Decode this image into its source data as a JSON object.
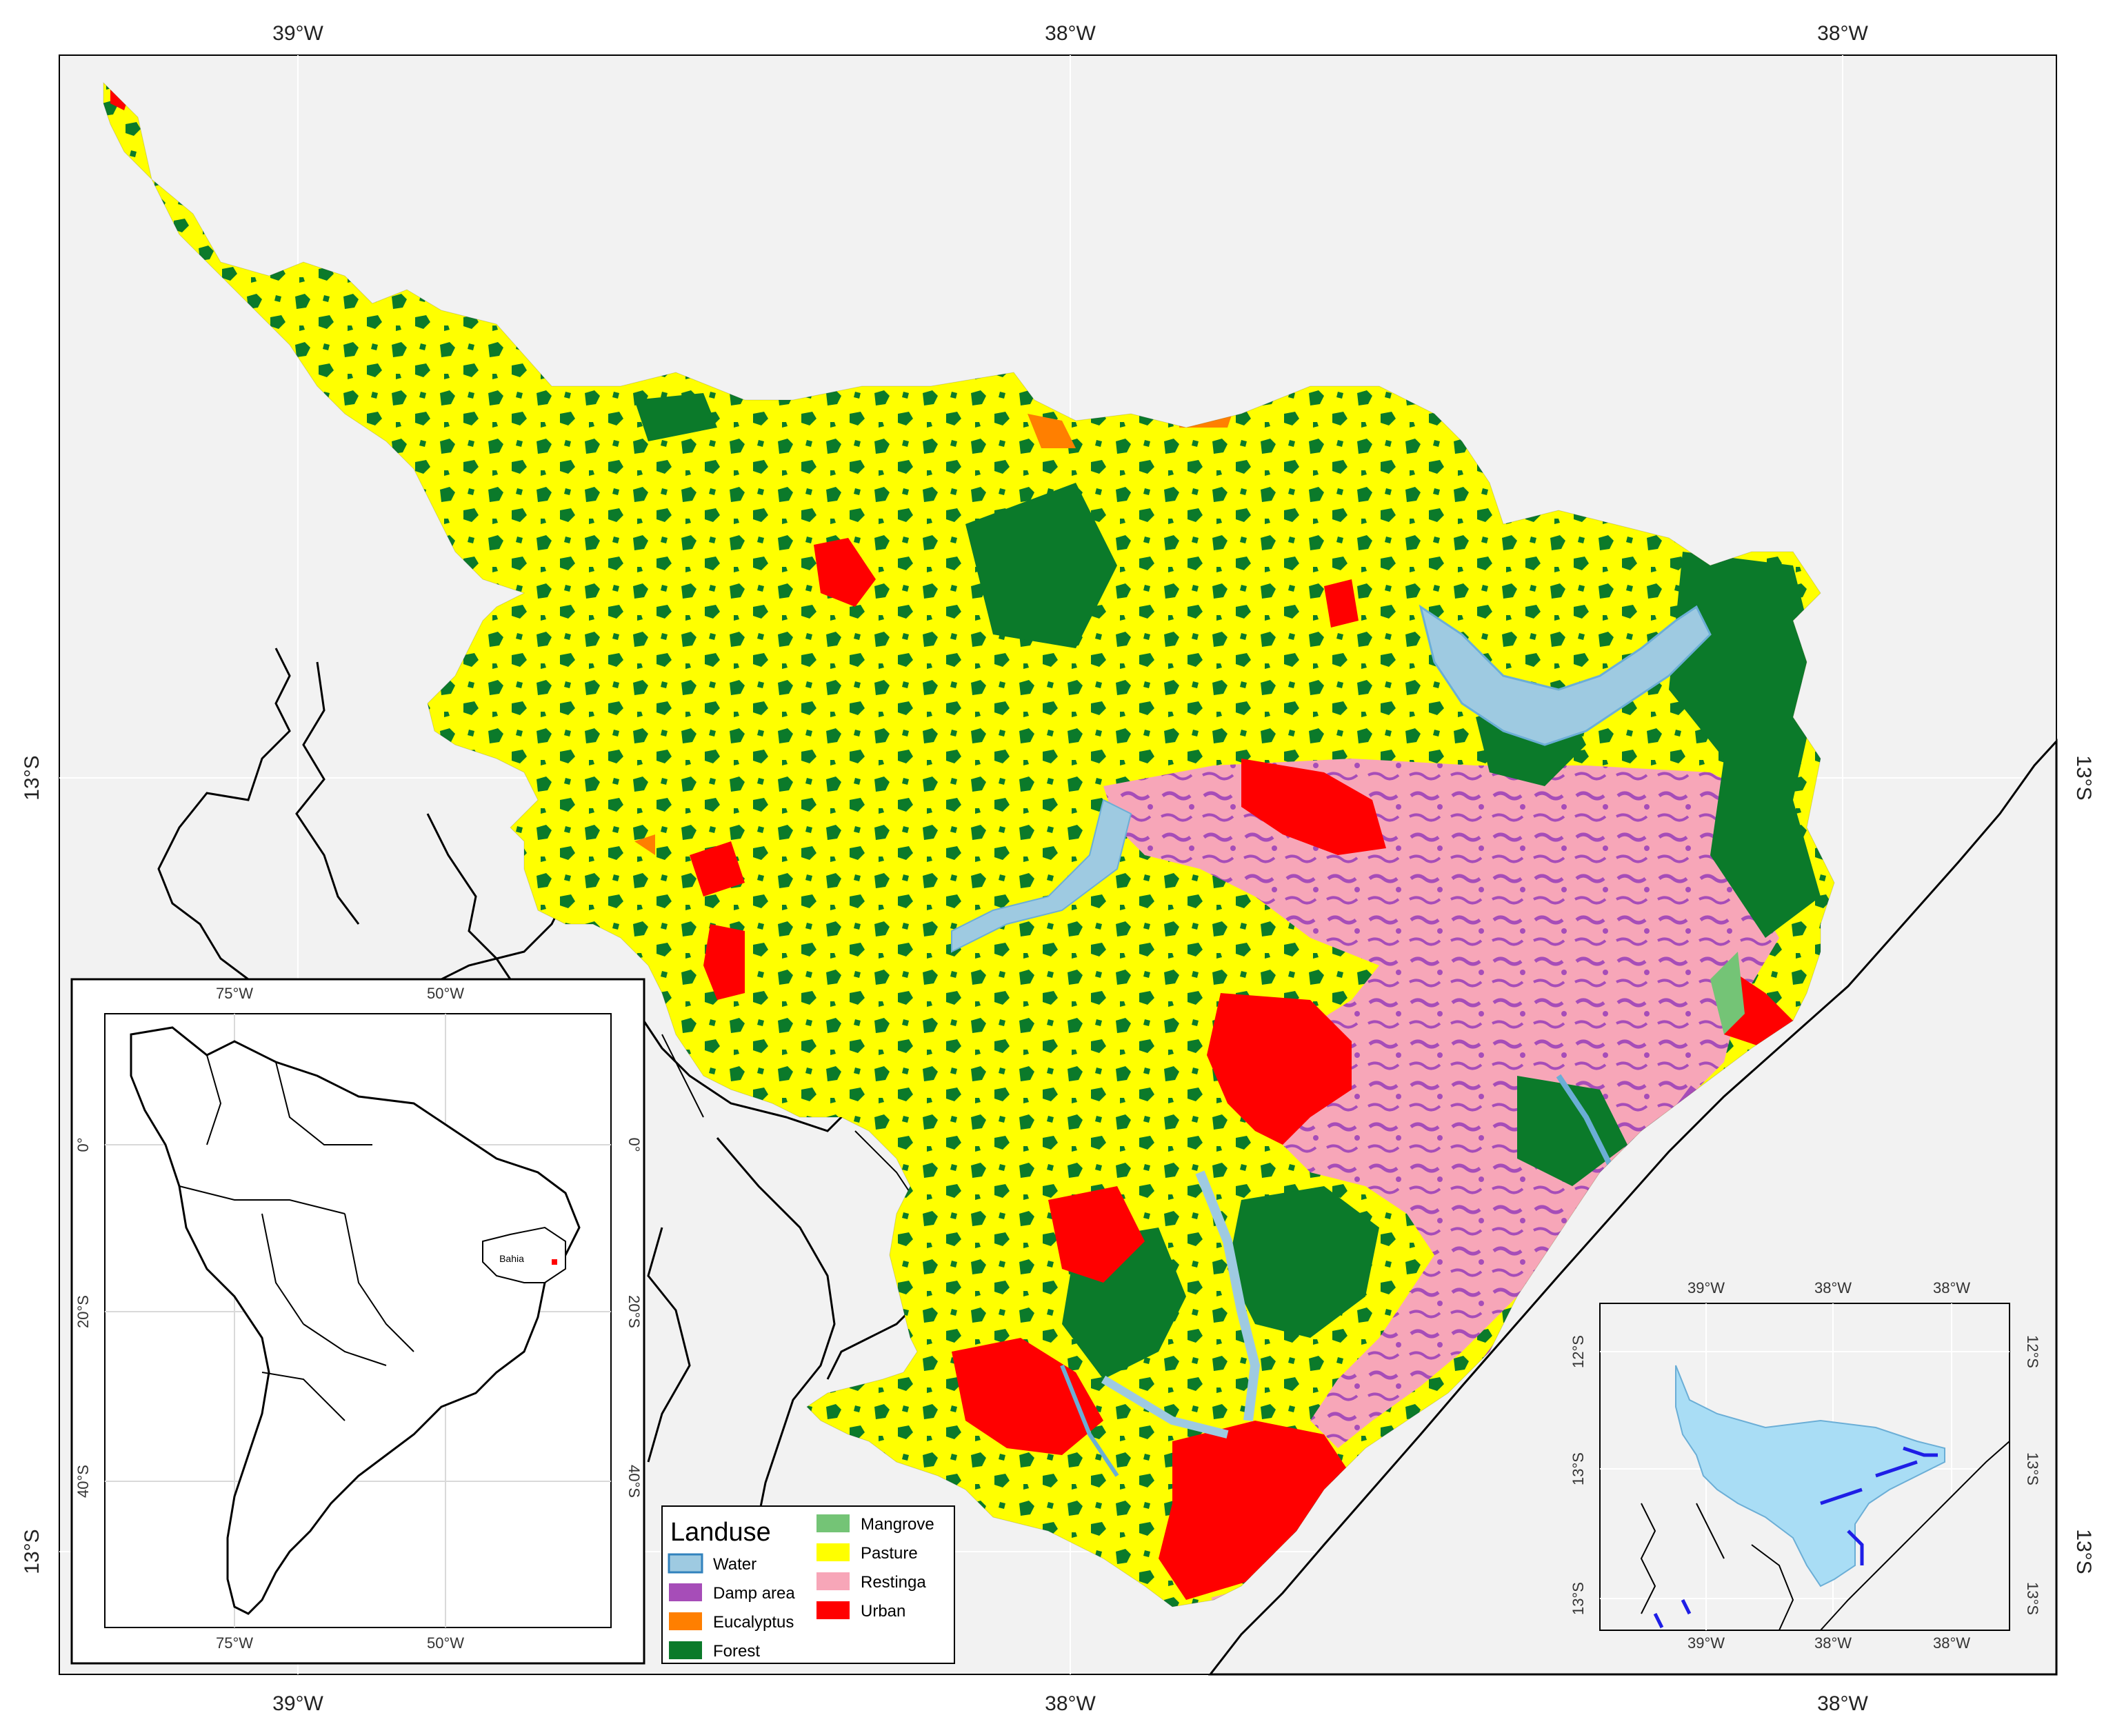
{
  "main_axes": {
    "top_labels": [
      "39°W",
      "38°W",
      "38°W"
    ],
    "bottom_labels": [
      "39°W",
      "38°W",
      "38°W"
    ],
    "left_labels": [
      "13°S",
      "13°S"
    ],
    "right_labels": [
      "13°S",
      "13°S"
    ]
  },
  "legend": {
    "title": "Landuse",
    "items": [
      {
        "label": "Water",
        "color": "#9ecae1"
      },
      {
        "label": "Damp area",
        "color": "#a64db8"
      },
      {
        "label": "Eucalyptus",
        "color": "#ff7f00"
      },
      {
        "label": "Forest",
        "color": "#0b7a2a"
      },
      {
        "label": "Mangrove",
        "color": "#74c476"
      },
      {
        "label": "Pasture",
        "color": "#ffff00"
      },
      {
        "label": "Restinga",
        "color": "#f7a6b8"
      },
      {
        "label": "Urban",
        "color": "#ff0000"
      }
    ]
  },
  "south_america_inset": {
    "top_labels": [
      "75°W",
      "50°W"
    ],
    "bottom_labels": [
      "75°W",
      "50°W"
    ],
    "left_labels": [
      "0°",
      "20°S",
      "40°S"
    ],
    "right_labels": [
      "0°",
      "20°S",
      "40°S"
    ],
    "state_label": "Bahia"
  },
  "locator_inset": {
    "top_labels": [
      "39°W",
      "38°W",
      "38°W"
    ],
    "bottom_labels": [
      "39°W",
      "38°W",
      "38°W"
    ],
    "left_labels": [
      "12°S",
      "13°S",
      "13°S"
    ],
    "right_labels": [
      "12°S",
      "13°S",
      "13°S"
    ]
  },
  "colors": {
    "background": "#f2f2f2",
    "land": "#ffffff",
    "water": "#9ecae1",
    "damp": "#a64db8",
    "eucalyptus": "#ff7f00",
    "forest": "#0b7a2a",
    "mangrove": "#74c476",
    "pasture": "#ffff00",
    "restinga": "#f7a6b8",
    "urban": "#ff0000",
    "basin_fill": "#a9ddf5",
    "river_blue": "#1e1ee6"
  }
}
